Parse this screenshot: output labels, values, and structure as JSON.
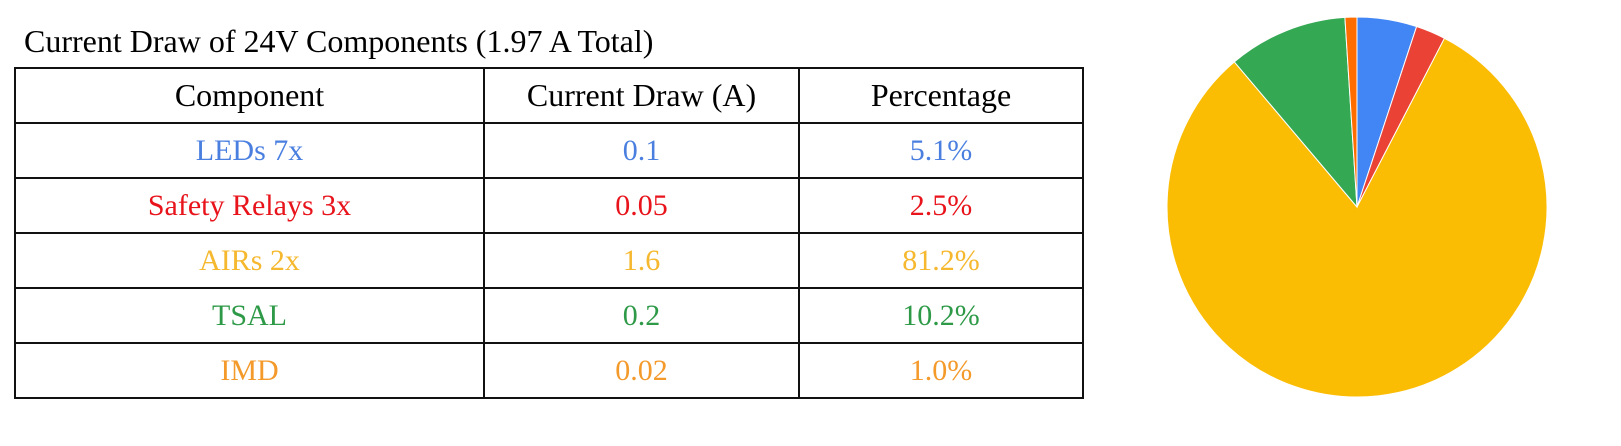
{
  "title": "Current Draw of 24V Components (1.97 A Total)",
  "table": {
    "headers": [
      "Component",
      "Current Draw (A)",
      "Percentage"
    ],
    "rows": [
      {
        "component": "LEDs 7x",
        "current": "0.1",
        "percentage": "5.1%",
        "color": "#4a7fe0"
      },
      {
        "component": "Safety Relays 3x",
        "current": "0.05",
        "percentage": "2.5%",
        "color": "#e8131b"
      },
      {
        "component": "AIRs 2x",
        "current": "1.6",
        "percentage": "81.2%",
        "color": "#f5b82e"
      },
      {
        "component": "TSAL",
        "current": "0.2",
        "percentage": "10.2%",
        "color": "#2e9a48"
      },
      {
        "component": "IMD",
        "current": "0.02",
        "percentage": "1.0%",
        "color": "#f39a2b"
      }
    ]
  },
  "chart_data": {
    "type": "pie",
    "categories": [
      "LEDs 7x",
      "Safety Relays 3x",
      "AIRs 2x",
      "TSAL",
      "IMD"
    ],
    "values": [
      0.1,
      0.05,
      1.6,
      0.2,
      0.02
    ],
    "colors": [
      "#4285f4",
      "#ea4335",
      "#fbbc04",
      "#34a853",
      "#ff6d01"
    ],
    "start_angle_deg": 0,
    "direction": "clockwise"
  }
}
